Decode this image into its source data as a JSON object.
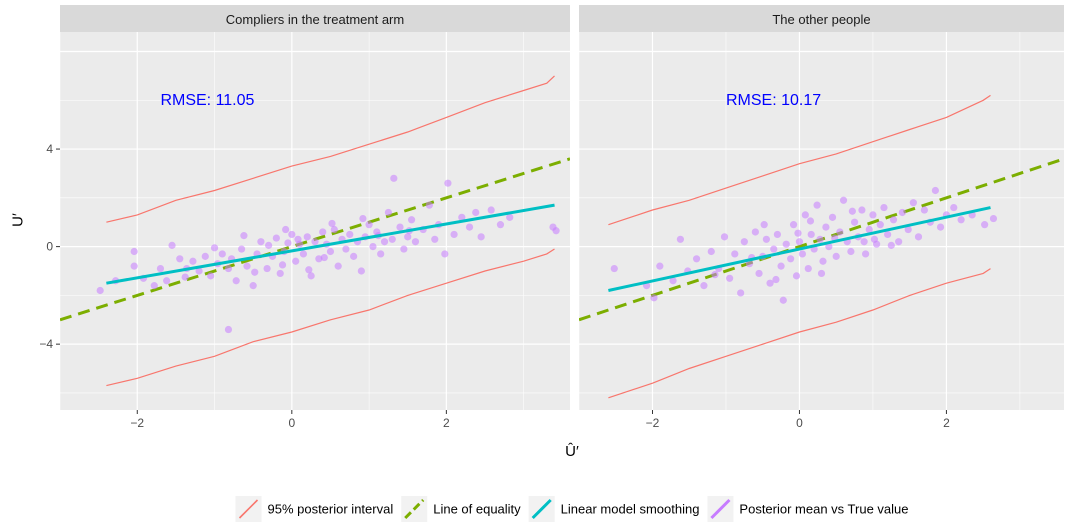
{
  "chart_data": {
    "type": "scatter",
    "xlabel": "Û′",
    "ylabel": "U′",
    "xlim": [
      -3.0,
      3.6
    ],
    "ylim": [
      -6.7,
      8.8
    ],
    "x_ticks": [
      -2,
      0,
      2
    ],
    "x_tick_labels": [
      "−2",
      "0",
      "2"
    ],
    "y_ticks": [
      -4,
      0,
      4
    ],
    "y_tick_labels": [
      "−4",
      "0",
      "4"
    ],
    "grid": true,
    "legend_position": "bottom",
    "legend": [
      {
        "label": "95% posterior interval",
        "color": "#f8766d",
        "key": "interval"
      },
      {
        "label": "Line of equality",
        "color": "#7cae00",
        "key": "equality"
      },
      {
        "label": "Linear model smoothing",
        "color": "#00bfc4",
        "key": "lm"
      },
      {
        "label": "Posterior mean vs True value",
        "color": "#c77cff",
        "key": "points"
      }
    ],
    "panels": [
      {
        "title": "Compliers in the treatment arm",
        "annotation": "RMSE: 11.05",
        "annotation_at": [
          -1.7,
          6.0
        ],
        "lm_line": {
          "x": [
            -2.4,
            3.4
          ],
          "y": [
            -1.5,
            1.7
          ]
        },
        "upper_band": {
          "x": [
            -2.4,
            -2.0,
            -1.5,
            -1.0,
            -0.5,
            0.0,
            0.5,
            1.0,
            1.5,
            2.0,
            2.5,
            3.0,
            3.3,
            3.4
          ],
          "y": [
            1.0,
            1.3,
            1.9,
            2.3,
            2.8,
            3.3,
            3.7,
            4.2,
            4.7,
            5.3,
            5.9,
            6.4,
            6.7,
            7.0
          ]
        },
        "lower_band": {
          "x": [
            -2.4,
            -2.0,
            -1.5,
            -1.0,
            -0.5,
            0.0,
            0.5,
            1.0,
            1.5,
            2.0,
            2.5,
            3.0,
            3.3,
            3.4
          ],
          "y": [
            -5.7,
            -5.4,
            -4.9,
            -4.5,
            -3.9,
            -3.5,
            -3.0,
            -2.6,
            -2.0,
            -1.5,
            -1.0,
            -0.6,
            -0.3,
            -0.1
          ]
        },
        "points": [
          [
            -2.48,
            -1.8
          ],
          [
            -2.28,
            -1.4
          ],
          [
            -2.04,
            -0.8
          ],
          [
            -2.04,
            -0.2
          ],
          [
            -1.92,
            -1.3
          ],
          [
            -1.78,
            -1.6
          ],
          [
            -1.62,
            -1.4
          ],
          [
            -1.55,
            0.05
          ],
          [
            -1.45,
            -0.5
          ],
          [
            -1.36,
            -0.9
          ],
          [
            -1.28,
            -0.6
          ],
          [
            -1.2,
            -1.0
          ],
          [
            -1.12,
            -0.4
          ],
          [
            -1.05,
            -1.2
          ],
          [
            -0.96,
            -0.7
          ],
          [
            -0.9,
            -0.3
          ],
          [
            -0.82,
            -0.9
          ],
          [
            -0.78,
            -0.5
          ],
          [
            -0.72,
            -1.4
          ],
          [
            -0.65,
            -0.1
          ],
          [
            -0.58,
            -0.8
          ],
          [
            -0.5,
            -1.6
          ],
          [
            -0.45,
            -0.3
          ],
          [
            -0.4,
            0.2
          ],
          [
            -0.32,
            -0.9
          ],
          [
            -0.25,
            -0.4
          ],
          [
            -0.2,
            0.35
          ],
          [
            -0.15,
            -1.1
          ],
          [
            -0.1,
            -0.2
          ],
          [
            -0.05,
            0.15
          ],
          [
            0.0,
            0.5
          ],
          [
            0.05,
            -0.6
          ],
          [
            0.1,
            0.1
          ],
          [
            0.15,
            -0.3
          ],
          [
            0.2,
            0.4
          ],
          [
            0.25,
            -1.2
          ],
          [
            0.3,
            0.2
          ],
          [
            0.35,
            -0.5
          ],
          [
            0.4,
            0.6
          ],
          [
            0.45,
            0.1
          ],
          [
            0.5,
            -0.2
          ],
          [
            0.55,
            0.7
          ],
          [
            0.6,
            -0.8
          ],
          [
            0.65,
            0.3
          ],
          [
            0.7,
            -0.1
          ],
          [
            0.75,
            0.5
          ],
          [
            0.8,
            -0.4
          ],
          [
            0.85,
            0.2
          ],
          [
            0.9,
            -1.0
          ],
          [
            0.95,
            0.4
          ],
          [
            1.0,
            0.9
          ],
          [
            1.05,
            0.0
          ],
          [
            1.1,
            0.6
          ],
          [
            1.15,
            -0.3
          ],
          [
            1.2,
            0.2
          ],
          [
            1.25,
            1.4
          ],
          [
            1.3,
            0.3
          ],
          [
            1.32,
            2.8
          ],
          [
            1.4,
            0.8
          ],
          [
            1.45,
            -0.1
          ],
          [
            1.5,
            0.4
          ],
          [
            1.55,
            1.1
          ],
          [
            1.6,
            0.2
          ],
          [
            1.7,
            0.7
          ],
          [
            1.78,
            1.7
          ],
          [
            1.85,
            0.3
          ],
          [
            1.9,
            0.9
          ],
          [
            1.98,
            -0.3
          ],
          [
            2.02,
            2.6
          ],
          [
            2.1,
            0.5
          ],
          [
            2.2,
            1.2
          ],
          [
            2.3,
            0.8
          ],
          [
            2.38,
            1.4
          ],
          [
            2.45,
            0.4
          ],
          [
            2.58,
            1.5
          ],
          [
            2.7,
            0.9
          ],
          [
            2.82,
            1.2
          ],
          [
            3.38,
            0.8
          ],
          [
            3.42,
            0.65
          ],
          [
            -0.82,
            -3.4
          ],
          [
            -1.0,
            -0.05
          ],
          [
            -0.62,
            0.45
          ],
          [
            -0.08,
            0.7
          ],
          [
            0.52,
            0.95
          ],
          [
            -1.38,
            -1.25
          ],
          [
            0.22,
            -0.95
          ],
          [
            0.92,
            1.15
          ],
          [
            -0.48,
            -1.05
          ],
          [
            1.52,
            0.65
          ],
          [
            -0.3,
            0.05
          ],
          [
            0.08,
            0.3
          ],
          [
            -1.7,
            -0.9
          ],
          [
            -0.12,
            -0.75
          ],
          [
            0.42,
            -0.45
          ],
          [
            1.12,
            0.45
          ]
        ]
      },
      {
        "title": "The other people",
        "annotation": "RMSE: 10.17",
        "annotation_at": [
          -1.0,
          6.0
        ],
        "lm_line": {
          "x": [
            -2.6,
            2.6
          ],
          "y": [
            -1.8,
            1.6
          ]
        },
        "upper_band": {
          "x": [
            -2.6,
            -2.0,
            -1.5,
            -1.0,
            -0.5,
            0.0,
            0.5,
            1.0,
            1.5,
            2.0,
            2.5,
            2.6
          ],
          "y": [
            0.9,
            1.5,
            1.9,
            2.4,
            2.9,
            3.4,
            3.8,
            4.3,
            4.8,
            5.3,
            6.0,
            6.2
          ]
        },
        "lower_band": {
          "x": [
            -2.6,
            -2.0,
            -1.5,
            -1.0,
            -0.5,
            0.0,
            0.5,
            1.0,
            1.5,
            2.0,
            2.5,
            2.6
          ],
          "y": [
            -6.2,
            -5.6,
            -5.0,
            -4.5,
            -4.0,
            -3.5,
            -3.1,
            -2.6,
            -2.0,
            -1.5,
            -1.1,
            -0.9
          ]
        },
        "points": [
          [
            -2.52,
            -0.9
          ],
          [
            -2.08,
            -1.6
          ],
          [
            -1.98,
            -2.1
          ],
          [
            -1.9,
            -0.8
          ],
          [
            -1.72,
            -1.4
          ],
          [
            -1.62,
            0.3
          ],
          [
            -1.52,
            -1.0
          ],
          [
            -1.4,
            -0.5
          ],
          [
            -1.3,
            -1.6
          ],
          [
            -1.2,
            -0.2
          ],
          [
            -1.1,
            -0.9
          ],
          [
            -1.02,
            0.4
          ],
          [
            -0.95,
            -1.3
          ],
          [
            -0.88,
            -0.3
          ],
          [
            -0.8,
            -1.9
          ],
          [
            -0.75,
            0.2
          ],
          [
            -0.68,
            -0.7
          ],
          [
            -0.6,
            0.6
          ],
          [
            -0.55,
            -1.1
          ],
          [
            -0.5,
            -0.4
          ],
          [
            -0.45,
            0.3
          ],
          [
            -0.4,
            -1.5
          ],
          [
            -0.35,
            -0.1
          ],
          [
            -0.3,
            0.5
          ],
          [
            -0.25,
            -0.8
          ],
          [
            -0.22,
            -2.2
          ],
          [
            -0.18,
            0.1
          ],
          [
            -0.12,
            -0.5
          ],
          [
            -0.08,
            0.9
          ],
          [
            -0.04,
            -1.2
          ],
          [
            0.0,
            0.2
          ],
          [
            0.04,
            -0.3
          ],
          [
            0.08,
            1.3
          ],
          [
            0.12,
            -0.9
          ],
          [
            0.16,
            0.5
          ],
          [
            0.2,
            -0.1
          ],
          [
            0.24,
            1.7
          ],
          [
            0.28,
            0.3
          ],
          [
            0.32,
            -0.6
          ],
          [
            0.36,
            0.8
          ],
          [
            0.4,
            0.0
          ],
          [
            0.45,
            1.2
          ],
          [
            0.5,
            -0.4
          ],
          [
            0.55,
            0.6
          ],
          [
            0.6,
            1.9
          ],
          [
            0.65,
            0.2
          ],
          [
            0.7,
            -0.2
          ],
          [
            0.75,
            1.0
          ],
          [
            0.8,
            0.4
          ],
          [
            0.85,
            1.5
          ],
          [
            0.9,
            -0.3
          ],
          [
            0.95,
            0.7
          ],
          [
            1.0,
            1.3
          ],
          [
            1.05,
            0.1
          ],
          [
            1.1,
            0.9
          ],
          [
            1.15,
            1.6
          ],
          [
            1.2,
            0.5
          ],
          [
            1.28,
            1.1
          ],
          [
            1.35,
            0.2
          ],
          [
            1.4,
            1.4
          ],
          [
            1.48,
            0.7
          ],
          [
            1.55,
            1.8
          ],
          [
            1.62,
            0.4
          ],
          [
            1.7,
            1.5
          ],
          [
            1.78,
            1.0
          ],
          [
            1.85,
            2.3
          ],
          [
            1.92,
            0.8
          ],
          [
            2.0,
            1.3
          ],
          [
            2.1,
            1.6
          ],
          [
            2.2,
            1.1
          ],
          [
            2.35,
            1.3
          ],
          [
            2.52,
            0.9
          ],
          [
            2.64,
            1.15
          ],
          [
            -0.65,
            -0.45
          ],
          [
            0.15,
            1.05
          ],
          [
            -1.15,
            -1.15
          ],
          [
            0.48,
            0.35
          ],
          [
            1.02,
            0.3
          ],
          [
            -0.32,
            -1.35
          ],
          [
            0.72,
            1.45
          ],
          [
            -0.02,
            0.55
          ],
          [
            1.25,
            0.05
          ],
          [
            -0.48,
            0.9
          ],
          [
            0.3,
            -1.1
          ],
          [
            0.88,
            0.2
          ]
        ]
      }
    ]
  }
}
